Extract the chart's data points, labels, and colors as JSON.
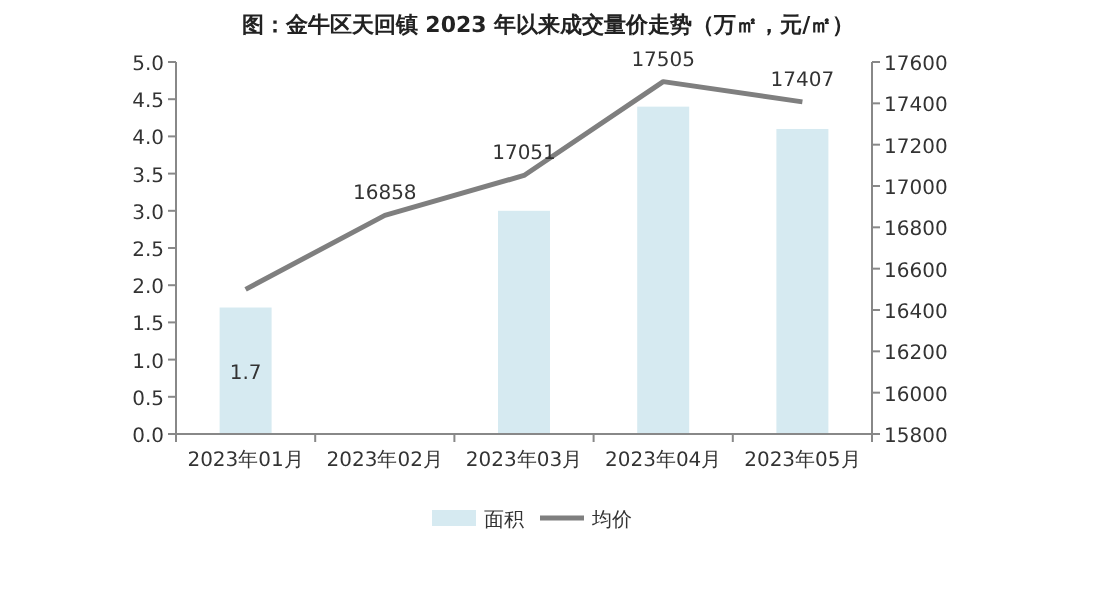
{
  "chart_data": {
    "type": "bar",
    "title": "图：金牛区天回镇 2023 年以来成交量价走势（万㎡，元/㎡）",
    "categories": [
      "2023年01月",
      "2023年02月",
      "2023年03月",
      "2023年04月",
      "2023年05月"
    ],
    "series": [
      {
        "name": "面积",
        "color": "#d6eaf1",
        "values": [
          1.7,
          null,
          3.0,
          4.4,
          4.1
        ],
        "value_labels": [
          "1.7",
          null,
          null,
          null,
          null
        ]
      },
      {
        "name": "均价",
        "type": "line",
        "axis": "y2",
        "color": "#7f7f7f",
        "values": [
          16500,
          16858,
          17051,
          17505,
          17407
        ],
        "value_labels": [
          null,
          "16858",
          "17051",
          "17505",
          "17407"
        ]
      }
    ],
    "ylim": [
      0,
      5
    ],
    "yticks": [
      {
        "value": 0,
        "label": "0.0"
      },
      0.5,
      {
        "value": 1,
        "label": "1.0"
      },
      1.5,
      {
        "value": 2,
        "label": "2.0"
      },
      2.5,
      {
        "value": 3,
        "label": "3.0"
      },
      3.5,
      {
        "value": 4,
        "label": "4.0"
      },
      4.5,
      {
        "value": 5,
        "label": "5.0"
      }
    ],
    "y2lim": [
      15800,
      17600
    ],
    "y2ticks": [
      15800,
      16000,
      16200,
      16400,
      16600,
      16800,
      17000,
      17200,
      17400,
      17600
    ],
    "legend": "bottom",
    "grid": false,
    "marker": "none"
  }
}
